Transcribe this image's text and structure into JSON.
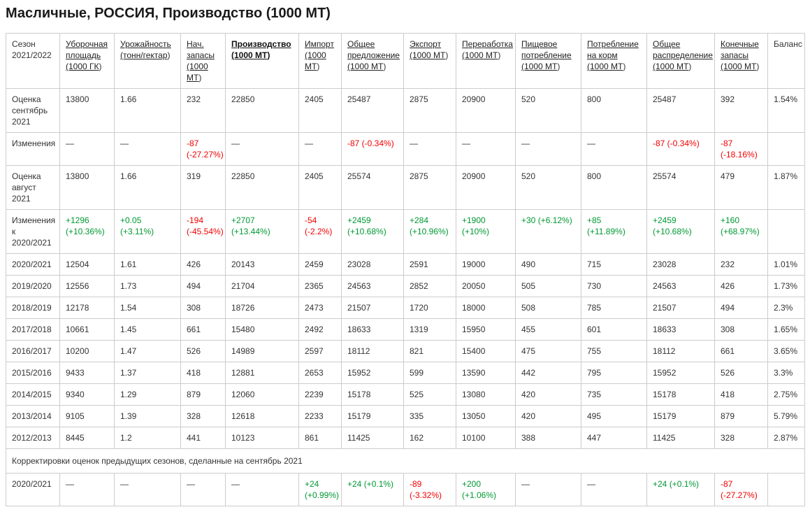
{
  "page": {
    "title": "Масличные, РОССИЯ, Производство (1000 МТ)"
  },
  "colors": {
    "positive_change": "#009933",
    "negative_change": "#f20000",
    "grid_border": "#cccccc"
  },
  "table": {
    "columns": [
      {
        "label": "Сезон 2021/2022",
        "link": false,
        "bold": false
      },
      {
        "label": "Уборочная площадь (1000 ГК)",
        "link": true,
        "bold": false
      },
      {
        "label": "Урожайность (тонн/гектар)",
        "link": true,
        "bold": false
      },
      {
        "label": "Нач. запасы (1000 МТ)",
        "link": true,
        "bold": false
      },
      {
        "label": "Производство (1000 МТ)",
        "link": true,
        "bold": true
      },
      {
        "label": "Импорт (1000 МТ)",
        "link": true,
        "bold": false
      },
      {
        "label": "Общее предложение (1000 МТ)",
        "link": true,
        "bold": false
      },
      {
        "label": "Экспорт (1000 МТ)",
        "link": true,
        "bold": false
      },
      {
        "label": "Переработка (1000 МТ)",
        "link": true,
        "bold": false
      },
      {
        "label": "Пищевое потребление (1000 МТ)",
        "link": true,
        "bold": false
      },
      {
        "label": "Потребление на корм (1000 МТ)",
        "link": true,
        "bold": false
      },
      {
        "label": "Общее распределение (1000 МТ)",
        "link": true,
        "bold": false
      },
      {
        "label": "Конечные запасы (1000 МТ)",
        "link": true,
        "bold": false
      },
      {
        "label": "Баланс",
        "link": false,
        "bold": false
      }
    ],
    "rows": [
      {
        "label": "Оценка сентябрь 2021",
        "cells": [
          "13800",
          "1.66",
          "232",
          "22850",
          "2405",
          "25487",
          "2875",
          "20900",
          "520",
          "800",
          "25487",
          "392",
          "1.54%"
        ]
      },
      {
        "label": "Изменения",
        "cells": [
          "—",
          "—",
          {
            "text": "-87 (-27.27%)",
            "color": "negative"
          },
          "—",
          "—",
          {
            "text": "-87 (-0.34%)",
            "color": "negative"
          },
          "—",
          "—",
          "—",
          "—",
          {
            "text": "-87 (-0.34%)",
            "color": "negative"
          },
          {
            "text": "-87 (-18.16%)",
            "color": "negative"
          },
          ""
        ]
      },
      {
        "label": "Оценка август 2021",
        "cells": [
          "13800",
          "1.66",
          "319",
          "22850",
          "2405",
          "25574",
          "2875",
          "20900",
          "520",
          "800",
          "25574",
          "479",
          "1.87%"
        ]
      },
      {
        "label": "Изменения к 2020/2021",
        "cells": [
          {
            "text": "+1296 (+10.36%)",
            "color": "positive"
          },
          {
            "text": "+0.05 (+3.11%)",
            "color": "positive"
          },
          {
            "text": "-194 (-45.54%)",
            "color": "negative"
          },
          {
            "text": "+2707 (+13.44%)",
            "color": "positive"
          },
          {
            "text": "-54 (-2.2%)",
            "color": "negative"
          },
          {
            "text": "+2459 (+10.68%)",
            "color": "positive"
          },
          {
            "text": "+284 (+10.96%)",
            "color": "positive"
          },
          {
            "text": "+1900 (+10%)",
            "color": "positive"
          },
          {
            "text": "+30 (+6.12%)",
            "color": "positive"
          },
          {
            "text": "+85 (+11.89%)",
            "color": "positive"
          },
          {
            "text": "+2459 (+10.68%)",
            "color": "positive"
          },
          {
            "text": "+160 (+68.97%)",
            "color": "positive"
          },
          ""
        ]
      },
      {
        "label": "2020/2021",
        "cells": [
          "12504",
          "1.61",
          "426",
          "20143",
          "2459",
          "23028",
          "2591",
          "19000",
          "490",
          "715",
          "23028",
          "232",
          "1.01%"
        ]
      },
      {
        "label": "2019/2020",
        "cells": [
          "12556",
          "1.73",
          "494",
          "21704",
          "2365",
          "24563",
          "2852",
          "20050",
          "505",
          "730",
          "24563",
          "426",
          "1.73%"
        ]
      },
      {
        "label": "2018/2019",
        "cells": [
          "12178",
          "1.54",
          "308",
          "18726",
          "2473",
          "21507",
          "1720",
          "18000",
          "508",
          "785",
          "21507",
          "494",
          "2.3%"
        ]
      },
      {
        "label": "2017/2018",
        "cells": [
          "10661",
          "1.45",
          "661",
          "15480",
          "2492",
          "18633",
          "1319",
          "15950",
          "455",
          "601",
          "18633",
          "308",
          "1.65%"
        ]
      },
      {
        "label": "2016/2017",
        "cells": [
          "10200",
          "1.47",
          "526",
          "14989",
          "2597",
          "18112",
          "821",
          "15400",
          "475",
          "755",
          "18112",
          "661",
          "3.65%"
        ]
      },
      {
        "label": "2015/2016",
        "cells": [
          "9433",
          "1.37",
          "418",
          "12881",
          "2653",
          "15952",
          "599",
          "13590",
          "442",
          "795",
          "15952",
          "526",
          "3.3%"
        ]
      },
      {
        "label": "2014/2015",
        "cells": [
          "9340",
          "1.29",
          "879",
          "12060",
          "2239",
          "15178",
          "525",
          "13080",
          "420",
          "735",
          "15178",
          "418",
          "2.75%"
        ]
      },
      {
        "label": "2013/2014",
        "cells": [
          "9105",
          "1.39",
          "328",
          "12618",
          "2233",
          "15179",
          "335",
          "13050",
          "420",
          "495",
          "15179",
          "879",
          "5.79%"
        ]
      },
      {
        "label": "2012/2013",
        "cells": [
          "8445",
          "1.2",
          "441",
          "10123",
          "861",
          "11425",
          "162",
          "10100",
          "388",
          "447",
          "11425",
          "328",
          "2.87%"
        ]
      }
    ],
    "section_title": "Корректировки оценок предыдущих сезонов, сделанные на сентябрь 2021",
    "adjustment_rows": [
      {
        "label": "2020/2021",
        "cells": [
          "—",
          "—",
          "—",
          "—",
          {
            "text": "+24 (+0.99%)",
            "color": "positive"
          },
          {
            "text": "+24 (+0.1%)",
            "color": "positive"
          },
          {
            "text": "-89 (-3.32%)",
            "color": "negative"
          },
          {
            "text": "+200 (+1.06%)",
            "color": "positive"
          },
          "—",
          "—",
          {
            "text": "+24 (+0.1%)",
            "color": "positive"
          },
          {
            "text": "-87 (-27.27%)",
            "color": "negative"
          },
          ""
        ]
      }
    ]
  }
}
